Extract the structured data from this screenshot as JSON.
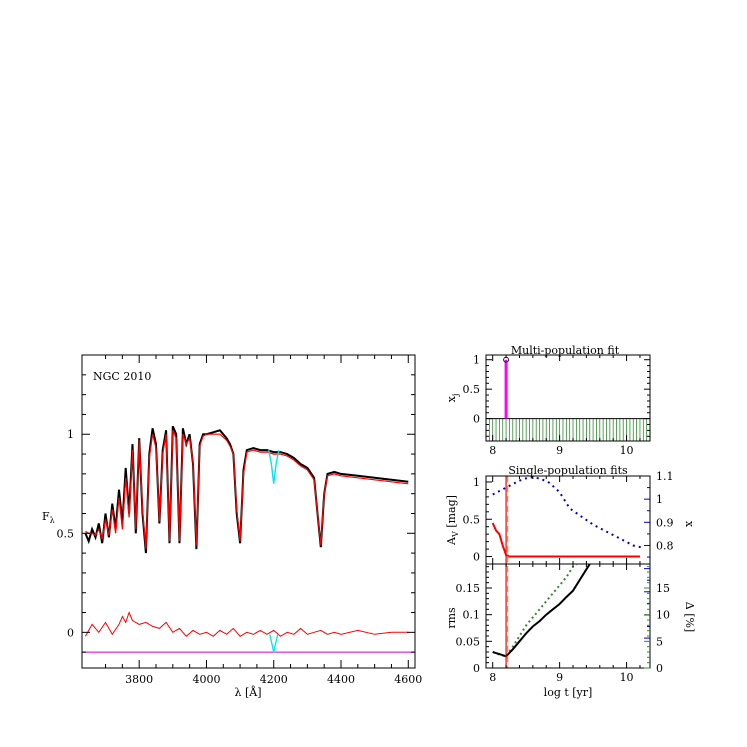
{
  "spectrum": {
    "type": "line",
    "label": "NGC 2010",
    "xlabel": "λ [Å]",
    "ylabel": "F",
    "ylabel_sub": "λ",
    "xlim": [
      3630,
      4620
    ],
    "ylim": [
      -0.18,
      1.4
    ],
    "xticks": [
      3800,
      4000,
      4200,
      4400,
      4600
    ],
    "yticks": [
      0,
      0.5,
      1
    ],
    "observed": {
      "color": "#000000",
      "x": [
        3640,
        3650,
        3660,
        3670,
        3680,
        3690,
        3700,
        3710,
        3720,
        3730,
        3740,
        3750,
        3760,
        3770,
        3780,
        3790,
        3800,
        3810,
        3820,
        3830,
        3840,
        3850,
        3860,
        3870,
        3880,
        3890,
        3900,
        3910,
        3920,
        3930,
        3940,
        3950,
        3960,
        3970,
        3980,
        3990,
        4000,
        4020,
        4040,
        4060,
        4070,
        4080,
        4090,
        4100,
        4110,
        4120,
        4140,
        4160,
        4180,
        4200,
        4220,
        4240,
        4260,
        4280,
        4300,
        4320,
        4330,
        4340,
        4350,
        4360,
        4380,
        4400,
        4450,
        4500,
        4550,
        4600
      ],
      "y": [
        0.5,
        0.46,
        0.52,
        0.48,
        0.55,
        0.45,
        0.6,
        0.48,
        0.65,
        0.52,
        0.72,
        0.55,
        0.83,
        0.6,
        0.95,
        0.5,
        0.98,
        0.6,
        0.4,
        0.9,
        1.03,
        0.95,
        0.55,
        0.92,
        1.02,
        0.45,
        1.04,
        1.0,
        0.45,
        1.03,
        0.95,
        1.0,
        0.85,
        0.42,
        0.95,
        1.0,
        1.0,
        1.01,
        1.02,
        0.98,
        0.95,
        0.9,
        0.6,
        0.45,
        0.82,
        0.92,
        0.93,
        0.92,
        0.92,
        0.91,
        0.91,
        0.9,
        0.88,
        0.85,
        0.83,
        0.78,
        0.6,
        0.43,
        0.7,
        0.8,
        0.81,
        0.8,
        0.79,
        0.78,
        0.77,
        0.76
      ]
    },
    "model": {
      "color": "#ff0000",
      "x": [
        3640,
        3650,
        3660,
        3670,
        3680,
        3690,
        3700,
        3710,
        3720,
        3730,
        3740,
        3750,
        3760,
        3770,
        3780,
        3790,
        3800,
        3810,
        3820,
        3830,
        3840,
        3850,
        3860,
        3870,
        3880,
        3890,
        3900,
        3910,
        3920,
        3930,
        3940,
        3950,
        3960,
        3970,
        3980,
        3990,
        4000,
        4020,
        4040,
        4060,
        4070,
        4080,
        4090,
        4100,
        4110,
        4120,
        4140,
        4160,
        4180,
        4200,
        4220,
        4240,
        4260,
        4280,
        4300,
        4320,
        4330,
        4340,
        4350,
        4360,
        4380,
        4400,
        4450,
        4500,
        4550,
        4600
      ],
      "y": [
        0.51,
        0.5,
        0.5,
        0.49,
        0.52,
        0.47,
        0.57,
        0.49,
        0.62,
        0.5,
        0.68,
        0.52,
        0.78,
        0.58,
        0.92,
        0.52,
        0.97,
        0.62,
        0.42,
        0.88,
        1.0,
        0.93,
        0.56,
        0.9,
        1.0,
        0.46,
        1.02,
        0.98,
        0.46,
        1.0,
        0.95,
        0.98,
        0.86,
        0.44,
        0.94,
        0.99,
        1.0,
        1.0,
        1.0,
        0.97,
        0.94,
        0.9,
        0.62,
        0.46,
        0.8,
        0.91,
        0.92,
        0.91,
        0.91,
        0.9,
        0.9,
        0.89,
        0.87,
        0.84,
        0.82,
        0.77,
        0.6,
        0.44,
        0.7,
        0.79,
        0.8,
        0.79,
        0.78,
        0.77,
        0.76,
        0.75
      ]
    },
    "masked": {
      "color": "#00e5ee",
      "x": [
        4185,
        4193,
        4200,
        4207,
        4215
      ],
      "y": [
        0.92,
        0.85,
        0.75,
        0.85,
        0.92
      ]
    },
    "residual": {
      "color": "#ff0000",
      "x": [
        3640,
        3660,
        3680,
        3700,
        3720,
        3740,
        3750,
        3760,
        3770,
        3780,
        3800,
        3820,
        3840,
        3860,
        3880,
        3900,
        3920,
        3940,
        3960,
        3980,
        4000,
        4020,
        4040,
        4060,
        4080,
        4100,
        4120,
        4140,
        4160,
        4180,
        4200,
        4220,
        4240,
        4260,
        4280,
        4300,
        4320,
        4340,
        4360,
        4380,
        4400,
        4450,
        4500,
        4550,
        4600
      ],
      "y": [
        -0.02,
        0.04,
        0.0,
        0.05,
        -0.01,
        0.04,
        0.08,
        0.05,
        0.1,
        0.06,
        0.04,
        0.05,
        0.03,
        0.02,
        0.05,
        0.0,
        0.02,
        -0.02,
        0.01,
        -0.01,
        0.0,
        -0.02,
        0.01,
        -0.01,
        0.02,
        -0.02,
        0.0,
        -0.01,
        0.01,
        -0.01,
        0.01,
        -0.02,
        0.0,
        -0.01,
        0.02,
        -0.01,
        0.0,
        0.01,
        -0.01,
        0.0,
        -0.01,
        0.01,
        -0.01,
        0.0,
        0.0
      ]
    },
    "residual_masked": {
      "color": "#00e5ee",
      "x": [
        4188,
        4195,
        4200,
        4205,
        4212
      ],
      "y": [
        -0.01,
        -0.06,
        -0.1,
        -0.06,
        -0.01
      ]
    },
    "baseline": {
      "color": "#cc00cc",
      "value": -0.1
    }
  },
  "multi": {
    "type": "bar",
    "title": "Multi-population fit",
    "ylabel": "x",
    "ylabel_sub": "j",
    "xlim": [
      7.9,
      10.35
    ],
    "ylim": [
      -0.38,
      1.08
    ],
    "xticks": [
      8,
      9,
      10
    ],
    "yticks": [
      0,
      0.5,
      1
    ],
    "bar": {
      "x": 8.2,
      "value": 1.0,
      "color": "#ff00ff"
    },
    "grid_color": "#2e8b2e"
  },
  "single": {
    "type": "line",
    "title": "Single-population fits",
    "ylabel": "A",
    "ylabel_sub": "V",
    "ylabel_unit": " [mag]",
    "ylim": [
      -0.1,
      1.08
    ],
    "yticks": [
      0,
      0.5,
      1
    ],
    "y2label": "x",
    "y2lim": [
      0.72,
      1.1
    ],
    "y2ticks": [
      "0.8",
      "0.9",
      "1",
      "1.1"
    ],
    "y2color": "#0000cc",
    "av": {
      "color": "#ff0000",
      "x": [
        8.0,
        8.05,
        8.1,
        8.15,
        8.2,
        8.25,
        9.0,
        10.0,
        10.2
      ],
      "y": [
        0.45,
        0.35,
        0.3,
        0.15,
        0.02,
        0.0,
        0.0,
        0.0,
        0.0
      ]
    },
    "chi": {
      "color": "#0000cc",
      "x": [
        8.0,
        8.2,
        8.4,
        8.55,
        8.7,
        8.85,
        9.0,
        9.15,
        9.3,
        9.5,
        9.7,
        9.9,
        10.1,
        10.25
      ],
      "y": [
        1.02,
        1.05,
        1.08,
        1.095,
        1.09,
        1.07,
        1.03,
        0.96,
        0.93,
        0.89,
        0.86,
        0.83,
        0.8,
        0.79
      ]
    }
  },
  "rms": {
    "type": "line",
    "xlabel": "log t [yr]",
    "ylabel": "rms",
    "xticks": [
      8,
      9,
      10
    ],
    "ylim": [
      0,
      0.195
    ],
    "yticks": [
      "0",
      "0.05",
      "0.1",
      "0.15"
    ],
    "y2label": "Δ [%]",
    "y2lim": [
      0,
      19.5
    ],
    "y2ticks": [
      "0",
      "5",
      "10",
      "15"
    ],
    "y2color": "#2e8b2e",
    "rms_line": {
      "color": "#000000",
      "x": [
        8.0,
        8.05,
        8.1,
        8.15,
        8.2,
        8.3,
        8.4,
        8.5,
        8.6,
        8.7,
        8.8,
        8.9,
        9.0,
        9.1,
        9.2,
        9.3,
        9.4,
        9.45
      ],
      "y": [
        0.03,
        0.028,
        0.026,
        0.024,
        0.022,
        0.035,
        0.05,
        0.065,
        0.078,
        0.088,
        0.1,
        0.11,
        0.12,
        0.133,
        0.145,
        0.165,
        0.185,
        0.195
      ]
    },
    "delta_line": {
      "color": "#2e8b2e",
      "x": [
        8.0,
        8.1,
        8.2,
        8.3,
        8.4,
        8.5,
        8.6,
        8.7,
        8.8,
        8.9,
        9.0,
        9.1,
        9.2,
        9.25
      ],
      "y": [
        3.0,
        2.5,
        2.2,
        4.0,
        6.0,
        8.0,
        9.5,
        11.0,
        12.5,
        14.0,
        15.5,
        17.0,
        19.0,
        19.5
      ]
    },
    "marker": {
      "x": 8.2,
      "color": "#ff0000",
      "color2": "#ff8c00"
    }
  }
}
